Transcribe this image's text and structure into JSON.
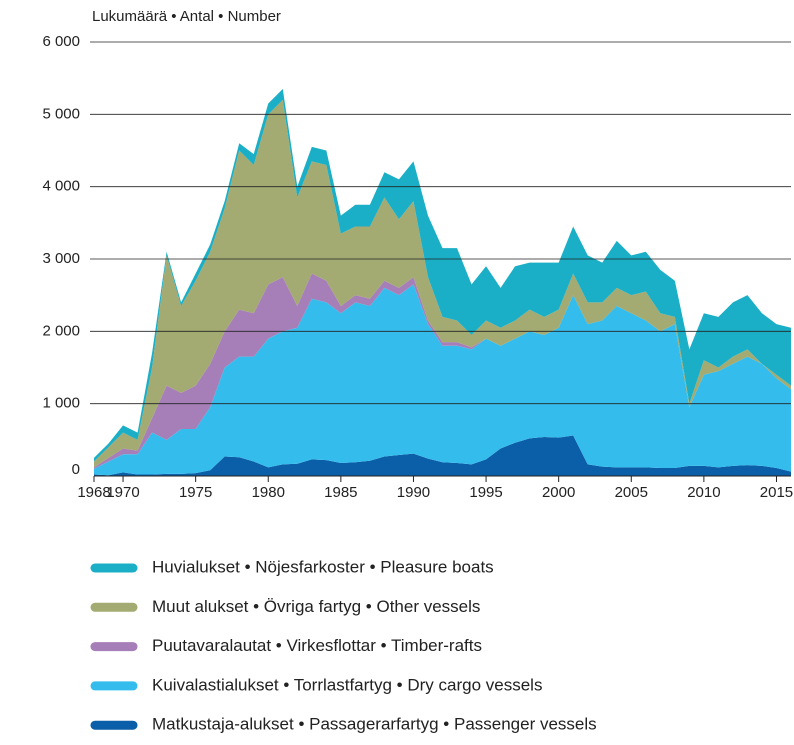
{
  "chart_data": {
    "type": "area",
    "stacked": true,
    "y_label": "Lukumäärä • Antal • Number",
    "x": [
      1968,
      1969,
      1970,
      1971,
      1972,
      1973,
      1974,
      1975,
      1976,
      1977,
      1978,
      1979,
      1980,
      1981,
      1982,
      1983,
      1984,
      1985,
      1986,
      1987,
      1988,
      1989,
      1990,
      1991,
      1992,
      1993,
      1994,
      1995,
      1996,
      1997,
      1998,
      1999,
      2000,
      2001,
      2002,
      2003,
      2004,
      2005,
      2006,
      2007,
      2008,
      2009,
      2010,
      2011,
      2012,
      2013,
      2014,
      2015,
      2016
    ],
    "series": [
      {
        "name": "Matkustaja-alukset • Passagerarfartyg • Passenger vessels",
        "color": "#0b5ea8",
        "values": [
          20,
          10,
          50,
          20,
          20,
          30,
          30,
          40,
          80,
          270,
          260,
          200,
          120,
          160,
          170,
          230,
          220,
          180,
          190,
          210,
          270,
          290,
          310,
          240,
          190,
          180,
          160,
          230,
          380,
          460,
          520,
          540,
          530,
          560,
          160,
          130,
          120,
          120,
          120,
          110,
          110,
          140,
          140,
          120,
          140,
          150,
          140,
          110,
          60
        ]
      },
      {
        "name": "Kuivalastialukset • Torrlastfartyg • Dry cargo vessels",
        "color": "#34bdec",
        "values": [
          80,
          190,
          250,
          280,
          580,
          470,
          620,
          610,
          870,
          1230,
          1390,
          1450,
          1780,
          1840,
          1880,
          2220,
          2180,
          2070,
          2210,
          2140,
          2330,
          2210,
          2340,
          1860,
          1610,
          1620,
          1590,
          1670,
          1420,
          1440,
          1480,
          1410,
          1520,
          1940,
          1940,
          2020,
          2230,
          2130,
          2030,
          1890,
          1990,
          810,
          1260,
          1330,
          1410,
          1500,
          1410,
          1240,
          1140
        ]
      },
      {
        "name": "Puutavaralautat • Virkesflottar • Timber-rafts",
        "color": "#a77fb8",
        "values": [
          20,
          50,
          80,
          50,
          200,
          750,
          500,
          600,
          600,
          500,
          650,
          600,
          750,
          750,
          300,
          350,
          300,
          100,
          100,
          100,
          100,
          100,
          100,
          50,
          50,
          50,
          30,
          0,
          0,
          0,
          0,
          0,
          0,
          0,
          0,
          0,
          0,
          0,
          0,
          0,
          0,
          0,
          0,
          0,
          0,
          0,
          0,
          0,
          0
        ]
      },
      {
        "name": "Muut alukset • Övriga fartyg • Other vessels",
        "color": "#a3ab72",
        "values": [
          80,
          150,
          220,
          150,
          700,
          1800,
          1200,
          1450,
          1550,
          1700,
          2200,
          2050,
          2350,
          2450,
          1500,
          1550,
          1600,
          1000,
          950,
          1000,
          1150,
          950,
          1050,
          600,
          350,
          300,
          170,
          250,
          250,
          250,
          300,
          250,
          250,
          300,
          300,
          250,
          250,
          250,
          400,
          250,
          100,
          50,
          200,
          50,
          100,
          100,
          0,
          50,
          50
        ]
      },
      {
        "name": "Huvialukset • Nöjesfarkoster • Pleasure boats",
        "color": "#1aafc6",
        "values": [
          50,
          50,
          100,
          100,
          200,
          50,
          50,
          100,
          100,
          100,
          100,
          150,
          150,
          150,
          150,
          200,
          200,
          250,
          300,
          300,
          350,
          550,
          550,
          850,
          950,
          1000,
          700,
          750,
          550,
          750,
          650,
          750,
          650,
          650,
          650,
          550,
          650,
          550,
          550,
          600,
          500,
          750,
          650,
          700,
          750,
          750,
          700,
          700,
          800
        ]
      }
    ],
    "xlim": [
      1968,
      2016
    ],
    "xticks": [
      1968,
      1970,
      1975,
      1980,
      1985,
      1990,
      1995,
      2000,
      2005,
      2010,
      2015
    ],
    "ylim": [
      0,
      6000
    ],
    "yticks": [
      0,
      {
        "value": 1000,
        "label": "1 000"
      },
      {
        "value": 2000,
        "label": "2 000"
      },
      {
        "value": 3000,
        "label": "3 000"
      },
      {
        "value": 4000,
        "label": "4 000"
      },
      {
        "value": 5000,
        "label": "5 000"
      },
      {
        "value": 6000,
        "label": "6 000"
      }
    ],
    "grid": true,
    "legend": "bottom"
  }
}
